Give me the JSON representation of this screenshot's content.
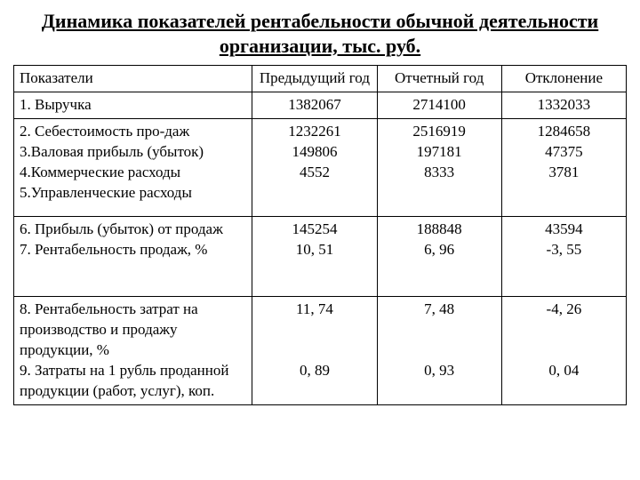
{
  "title": "Динамика показателей рентабельности обычной деятельности организации, тыс. руб.",
  "columns": {
    "c0": "Показатели",
    "c1": "Предыдущий год",
    "c2": "Отчетный год",
    "c3": "Отклонение"
  },
  "rows": [
    {
      "label": "1. Выручка",
      "prev": "1382067",
      "curr": "2714100",
      "dev": "1332033"
    },
    {
      "label": "2. Себестоимость про-даж\n3.Валовая прибыль (убыток)\n4.Коммерческие расходы\n5.Управленческие расходы",
      "prev": "1232261\n149806\n4552",
      "curr": "2516919\n197181\n8333",
      "dev": "1284658\n47375\n3781"
    },
    {
      "label": "6. Прибыль (убыток) от продаж\n7. Рентабельность продаж, %",
      "prev": "145254\n10, 51",
      "curr": "188848\n6, 96",
      "dev": "43594\n-3, 55"
    },
    {
      "label": "8. Рентабельность затрат на производство и продажу продукции, %\n9. Затраты на 1 рубль проданной продукции (работ, услуг), коп.",
      "prev": "11, 74\n\n\n0, 89",
      "curr": "7, 48\n\n\n0, 93",
      "dev": "-4, 26\n\n\n0, 04"
    }
  ],
  "row_heights": [
    "auto",
    "110px",
    "90px",
    "auto"
  ]
}
